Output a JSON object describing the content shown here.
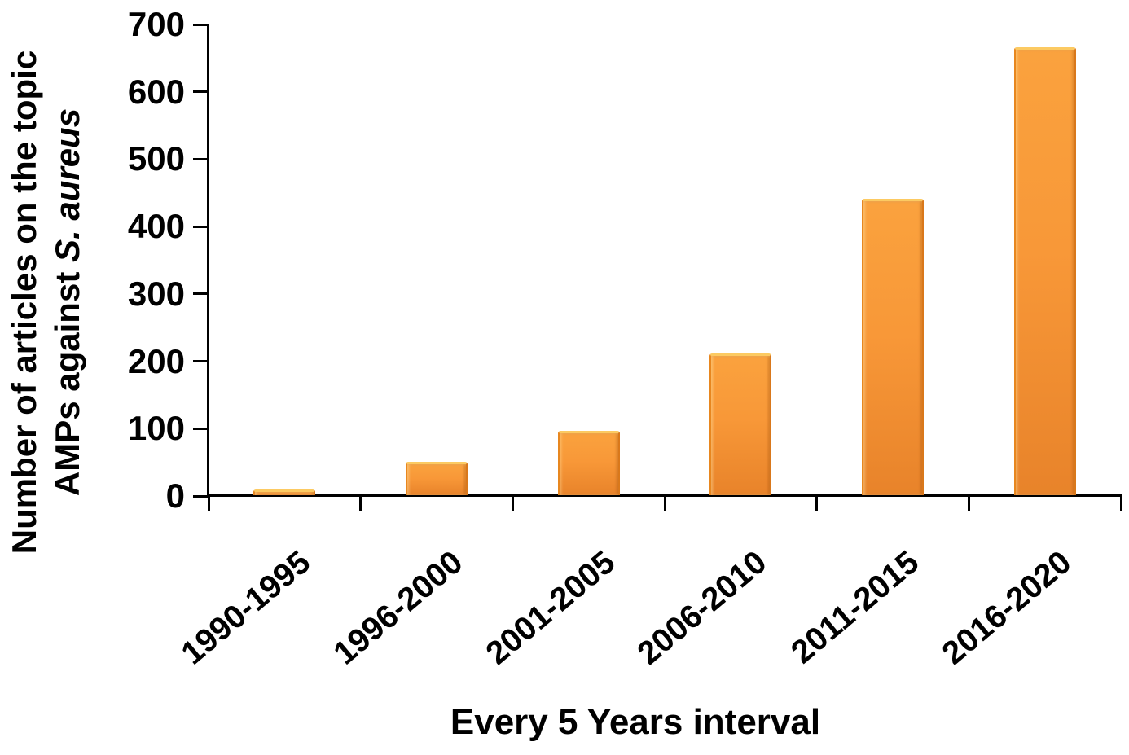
{
  "chart_data": {
    "type": "bar",
    "categories": [
      "1990-1995",
      "1996-2000",
      "2001-2005",
      "2006-2010",
      "2011-2015",
      "2016-2020"
    ],
    "values": [
      8,
      50,
      95,
      210,
      440,
      665
    ],
    "title": "",
    "xlabel": "Every 5 Years interval",
    "ylabel_line1": "Number of articles on the topic",
    "ylabel_line2_prefix": "AMPs against ",
    "ylabel_line2_italic": "S. aureus",
    "ylim": [
      0,
      700
    ],
    "yticks": [
      0,
      100,
      200,
      300,
      400,
      500,
      600,
      700
    ],
    "grid": "off",
    "legend": "none",
    "bar_colors": {
      "cap_highlight": "#FCCA62",
      "body_top": "#FAA23E",
      "body_bottom": "#E8832A",
      "edge_dark": "#D9781B"
    },
    "axis_color": "#000000"
  }
}
